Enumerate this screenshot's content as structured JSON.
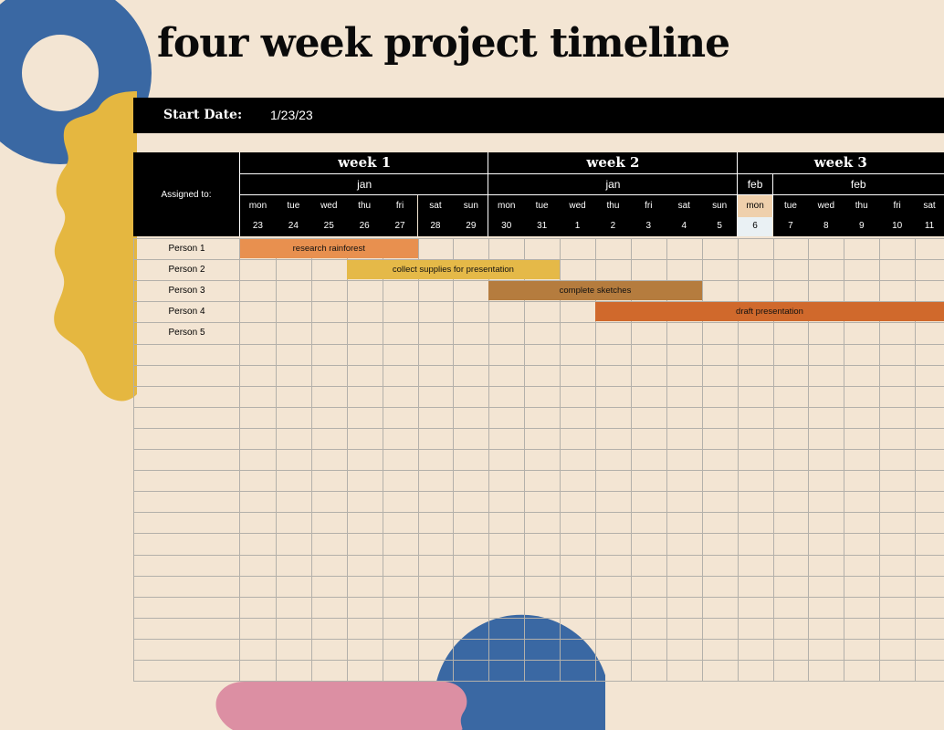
{
  "title": "four week project timeline",
  "start_date": {
    "label": "Start Date:",
    "value": "1/23/23"
  },
  "assigned_label": "Assigned to:",
  "weeks": [
    "week 1",
    "week 2",
    "week 3"
  ],
  "months": [
    "jan",
    "jan",
    "feb",
    "feb"
  ],
  "days": [
    "mon",
    "tue",
    "wed",
    "thu",
    "fri",
    "sat",
    "sun",
    "mon",
    "tue",
    "wed",
    "thu",
    "fri",
    "sat",
    "sun",
    "mon",
    "tue",
    "wed",
    "thu",
    "fri",
    "sat"
  ],
  "dates": [
    "23",
    "24",
    "25",
    "26",
    "27",
    "28",
    "29",
    "30",
    "31",
    "1",
    "2",
    "3",
    "4",
    "5",
    "6",
    "7",
    "8",
    "9",
    "10",
    "11"
  ],
  "persons": [
    "Person 1",
    "Person 2",
    "Person 3",
    "Person 4",
    "Person 5"
  ],
  "tasks": [
    {
      "label": "research rainforest",
      "row": 0,
      "start_day": 0,
      "span_days": 5,
      "color": "#e8904f"
    },
    {
      "label": "collect supplies for presentation",
      "row": 1,
      "start_day": 3,
      "span_days": 6,
      "color": "#e5b948"
    },
    {
      "label": "complete sketches",
      "row": 2,
      "start_day": 7,
      "span_days": 6,
      "color": "#b57c3e"
    },
    {
      "label": "draft presentation",
      "row": 3,
      "start_day": 10,
      "span_days": 10,
      "color": "#d0692c"
    }
  ],
  "colors": {
    "background": "#f3e5d3",
    "header": "#000000",
    "grid": "#b3b0aa",
    "deco_blue": "#3a68a3",
    "deco_yellow": "#e5b740",
    "deco_pink": "#dc8fa3"
  }
}
